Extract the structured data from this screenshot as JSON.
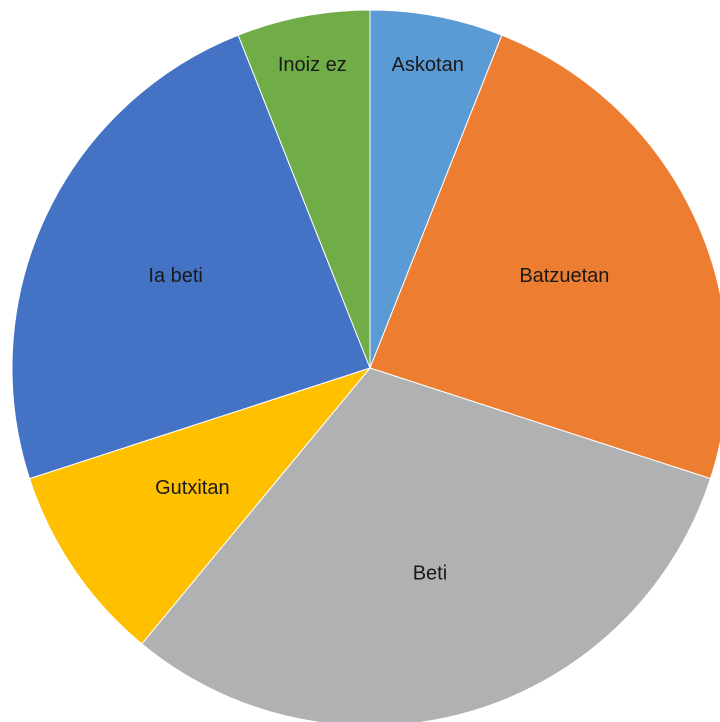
{
  "chart_data": {
    "type": "pie",
    "categories": [
      "Askotan",
      "Batzuetan",
      "Beti",
      "Gutxitan",
      "Ia beti",
      "Inoiz ez"
    ],
    "values": [
      6,
      24,
      31,
      9,
      24,
      6
    ],
    "colors": [
      "#5b9bd5",
      "#ed7d31",
      "#b0b1b3",
      "#ffc000",
      "#4472c4",
      "#70ad47"
    ]
  }
}
